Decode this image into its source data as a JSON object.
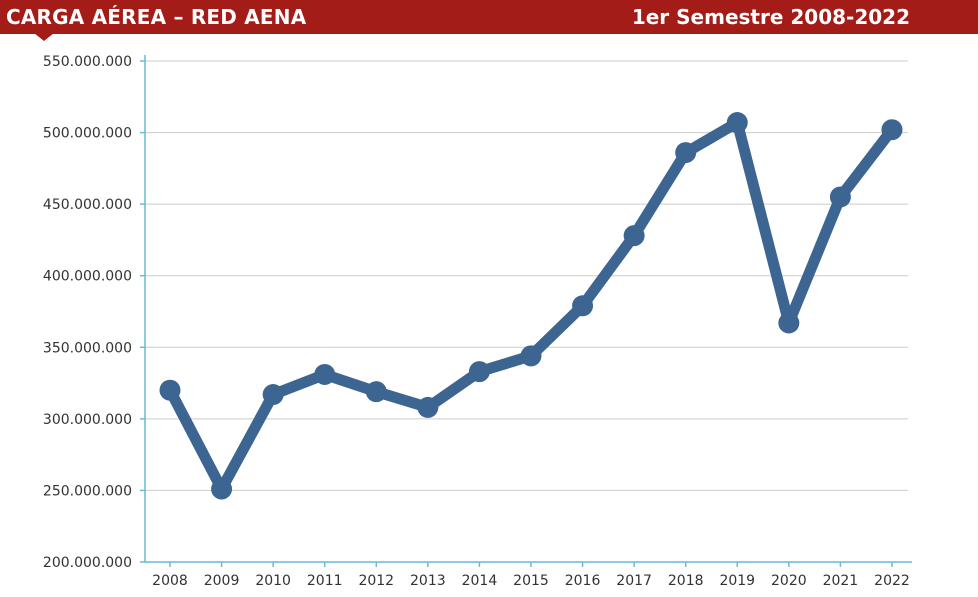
{
  "header": {
    "title": "CARGA AÉREA – RED AENA",
    "subtitle": "1er Semestre 2008-2022",
    "background_color": "#a31c17"
  },
  "chart_data": {
    "type": "line",
    "title": "CARGA AÉREA – RED AENA",
    "subtitle": "1er Semestre 2008-2022",
    "x": [
      "2008",
      "2009",
      "2010",
      "2011",
      "2012",
      "2013",
      "2014",
      "2015",
      "2016",
      "2017",
      "2018",
      "2019",
      "2020",
      "2021",
      "2022"
    ],
    "series": [
      {
        "color": "#3d6591",
        "values": [
          320000000,
          251000000,
          317000000,
          331000000,
          319000000,
          308000000,
          333000000,
          344000000,
          379000000,
          428000000,
          486000000,
          507000000,
          367000000,
          455000000,
          502000000
        ]
      }
    ],
    "y_ticks": [
      "200.000.000",
      "250.000.000",
      "300.000.000",
      "350.000.000",
      "400.000.000",
      "450.000.000",
      "500.000.000",
      "550.000.000"
    ],
    "ylim": [
      200000000,
      550000000
    ],
    "grid": true,
    "legend": "none",
    "axis_color": "#6cb8d6",
    "grid_color": "#cccccc"
  }
}
